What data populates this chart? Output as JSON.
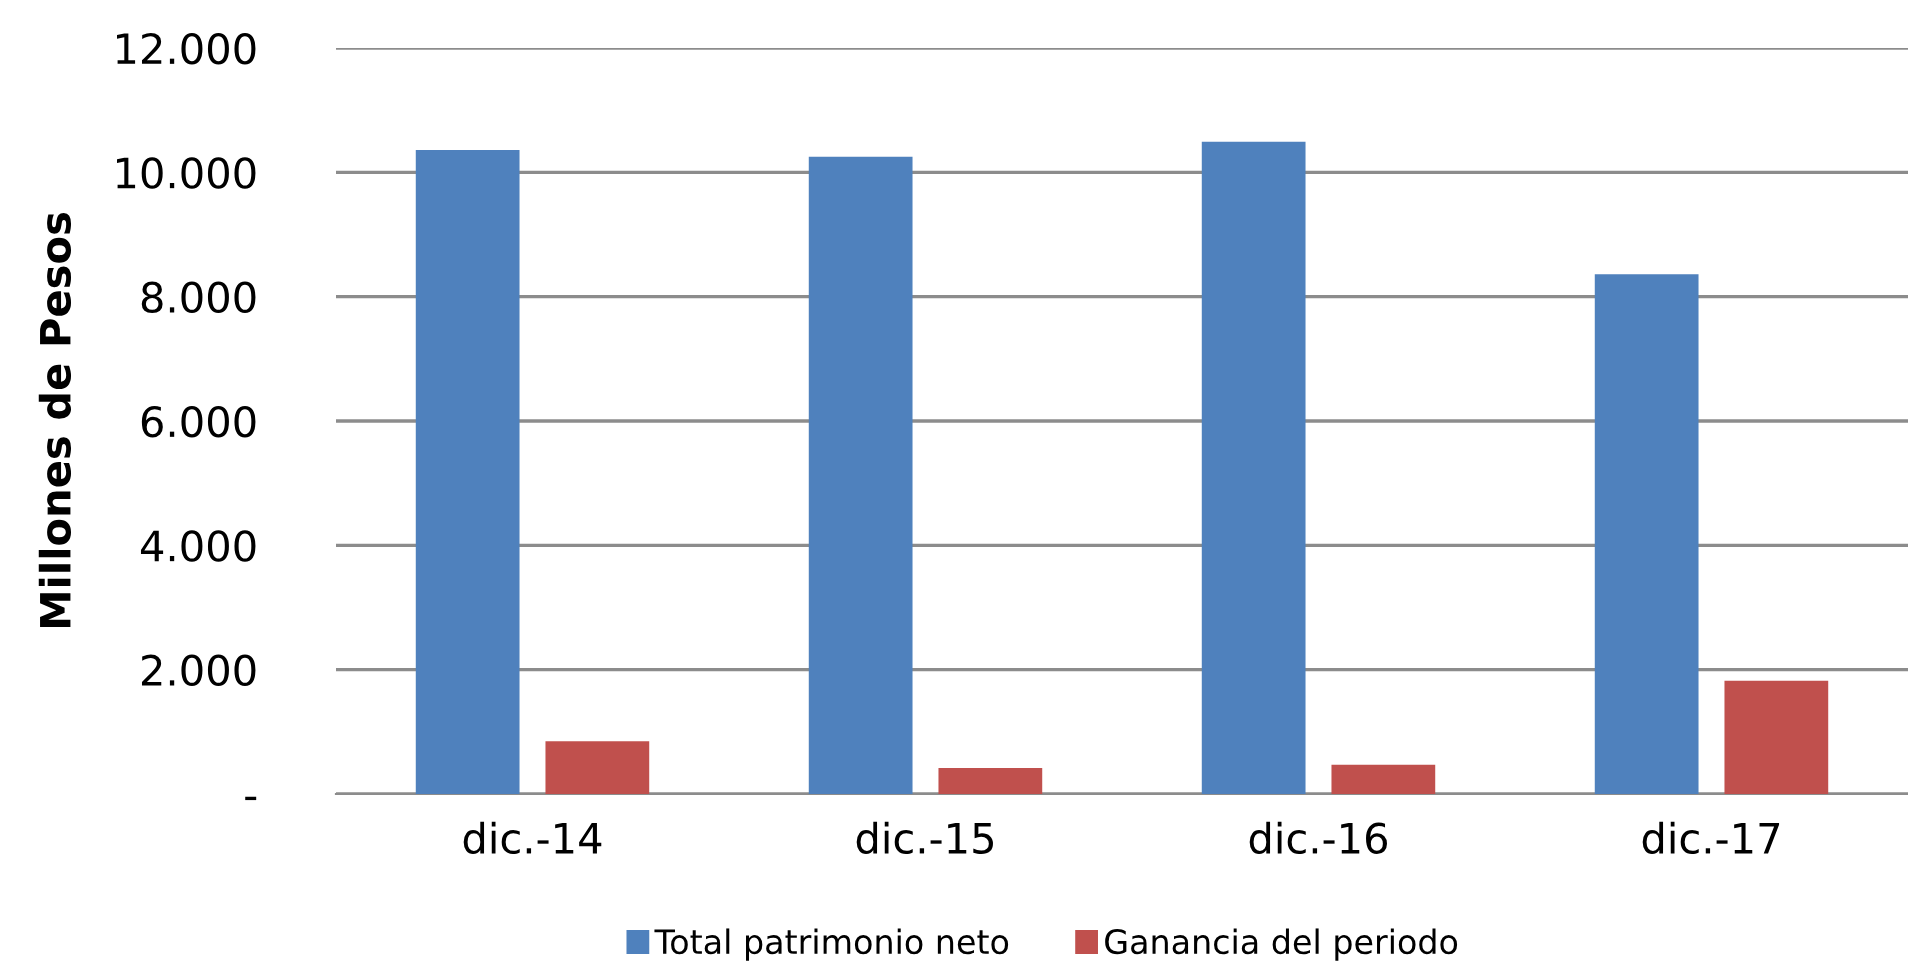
{
  "chart_data": {
    "type": "bar",
    "ylabel": "Millones de Pesos",
    "categories": [
      "dic.-14",
      "dic.-15",
      "dic.-16",
      "dic.-17"
    ],
    "series": [
      {
        "name": "Total patrimonio neto",
        "color": "#4f81bd",
        "values": [
          10360,
          10250,
          10490,
          8360
        ]
      },
      {
        "name": "Ganancia del periodo",
        "color": "#c0504d",
        "values": [
          850,
          420,
          470,
          1820
        ]
      }
    ],
    "ylim": [
      0,
      12000
    ],
    "yticks": [
      {
        "value": 0,
        "label": "-"
      },
      {
        "value": 2000,
        "label": "2.000"
      },
      {
        "value": 4000,
        "label": "4.000"
      },
      {
        "value": 6000,
        "label": "6.000"
      },
      {
        "value": 8000,
        "label": "8.000"
      },
      {
        "value": 10000,
        "label": "10.000"
      },
      {
        "value": 12000,
        "label": "12.000"
      }
    ],
    "grid": "y",
    "legend": "bottom"
  }
}
